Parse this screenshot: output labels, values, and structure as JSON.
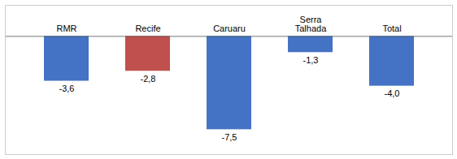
{
  "chart_data": {
    "type": "bar",
    "categories": [
      "RMR",
      "Recife",
      "Caruaru",
      "Serra\nTalhada",
      "Total"
    ],
    "values": [
      -3.6,
      -2.8,
      -7.5,
      -1.3,
      -4.0
    ],
    "value_labels": [
      "-3,6",
      "-2,8",
      "-7,5",
      "-1,3",
      "-4,0"
    ],
    "colors": [
      "#4472C4",
      "#C0504D",
      "#4472C4",
      "#4472C4",
      "#4472C4"
    ],
    "ylim": [
      -9.5,
      2.5
    ],
    "data_labels": true,
    "tick_labels": false,
    "grid": false
  }
}
